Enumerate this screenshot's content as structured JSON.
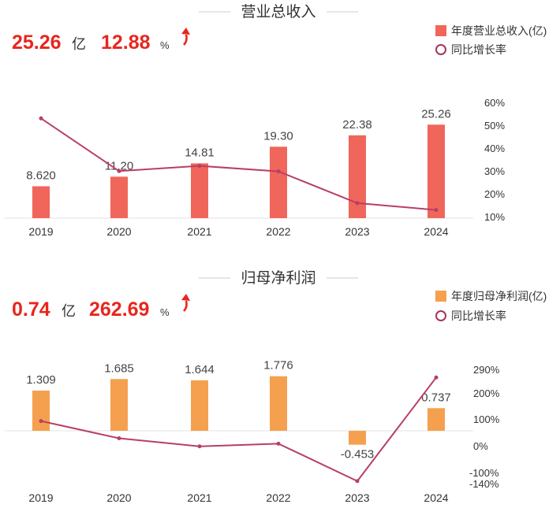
{
  "chart_data": [
    {
      "type": "bar",
      "title": "营业总收入",
      "kpi": {
        "value": "25.26",
        "unit": "亿",
        "growth": "12.88",
        "growth_unit": "%"
      },
      "categories": [
        "2019",
        "2020",
        "2021",
        "2022",
        "2023",
        "2024"
      ],
      "series": [
        {
          "name": "年度营业总收入(亿)",
          "type": "bar",
          "color": "#f0665a",
          "values": [
            8.62,
            11.2,
            14.81,
            19.3,
            22.38,
            25.26
          ],
          "labels": [
            "8.620",
            "11.20",
            "14.81",
            "19.30",
            "22.38",
            "25.26"
          ]
        },
        {
          "name": "同比增长率",
          "type": "line",
          "color": "#b83f66",
          "axis": "right",
          "values": [
            53,
            29.9,
            32.2,
            29.8,
            15.9,
            12.9
          ]
        }
      ],
      "ylim": [
        0,
        30
      ],
      "right_axis": {
        "ticks": [
          "60%",
          "50%",
          "40%",
          "30%",
          "20%",
          "10%"
        ]
      },
      "legend": "top-right"
    },
    {
      "type": "bar",
      "title": "归母净利润",
      "kpi": {
        "value": "0.74",
        "unit": "亿",
        "growth": "262.69",
        "growth_unit": "%"
      },
      "categories": [
        "2019",
        "2020",
        "2021",
        "2022",
        "2023",
        "2024"
      ],
      "series": [
        {
          "name": "年度归母净利润(亿)",
          "type": "bar",
          "color": "#f5a04e",
          "values": [
            1.309,
            1.685,
            1.644,
            1.776,
            -0.453,
            0.737
          ],
          "labels": [
            "1.309",
            "1.685",
            "1.644",
            "1.776",
            "-0.453",
            "0.737"
          ]
        },
        {
          "name": "同比增长率",
          "type": "line",
          "color": "#b83f66",
          "axis": "right",
          "values": [
            95,
            28.7,
            -2.4,
            8,
            -136,
            262.69
          ]
        }
      ],
      "ylim": [
        -1.3,
        3
      ],
      "right_axis": {
        "ticks": [
          "290%",
          "200%",
          "100%",
          "0%",
          "-100%",
          "-140%"
        ]
      },
      "legend": "top-right"
    }
  ]
}
